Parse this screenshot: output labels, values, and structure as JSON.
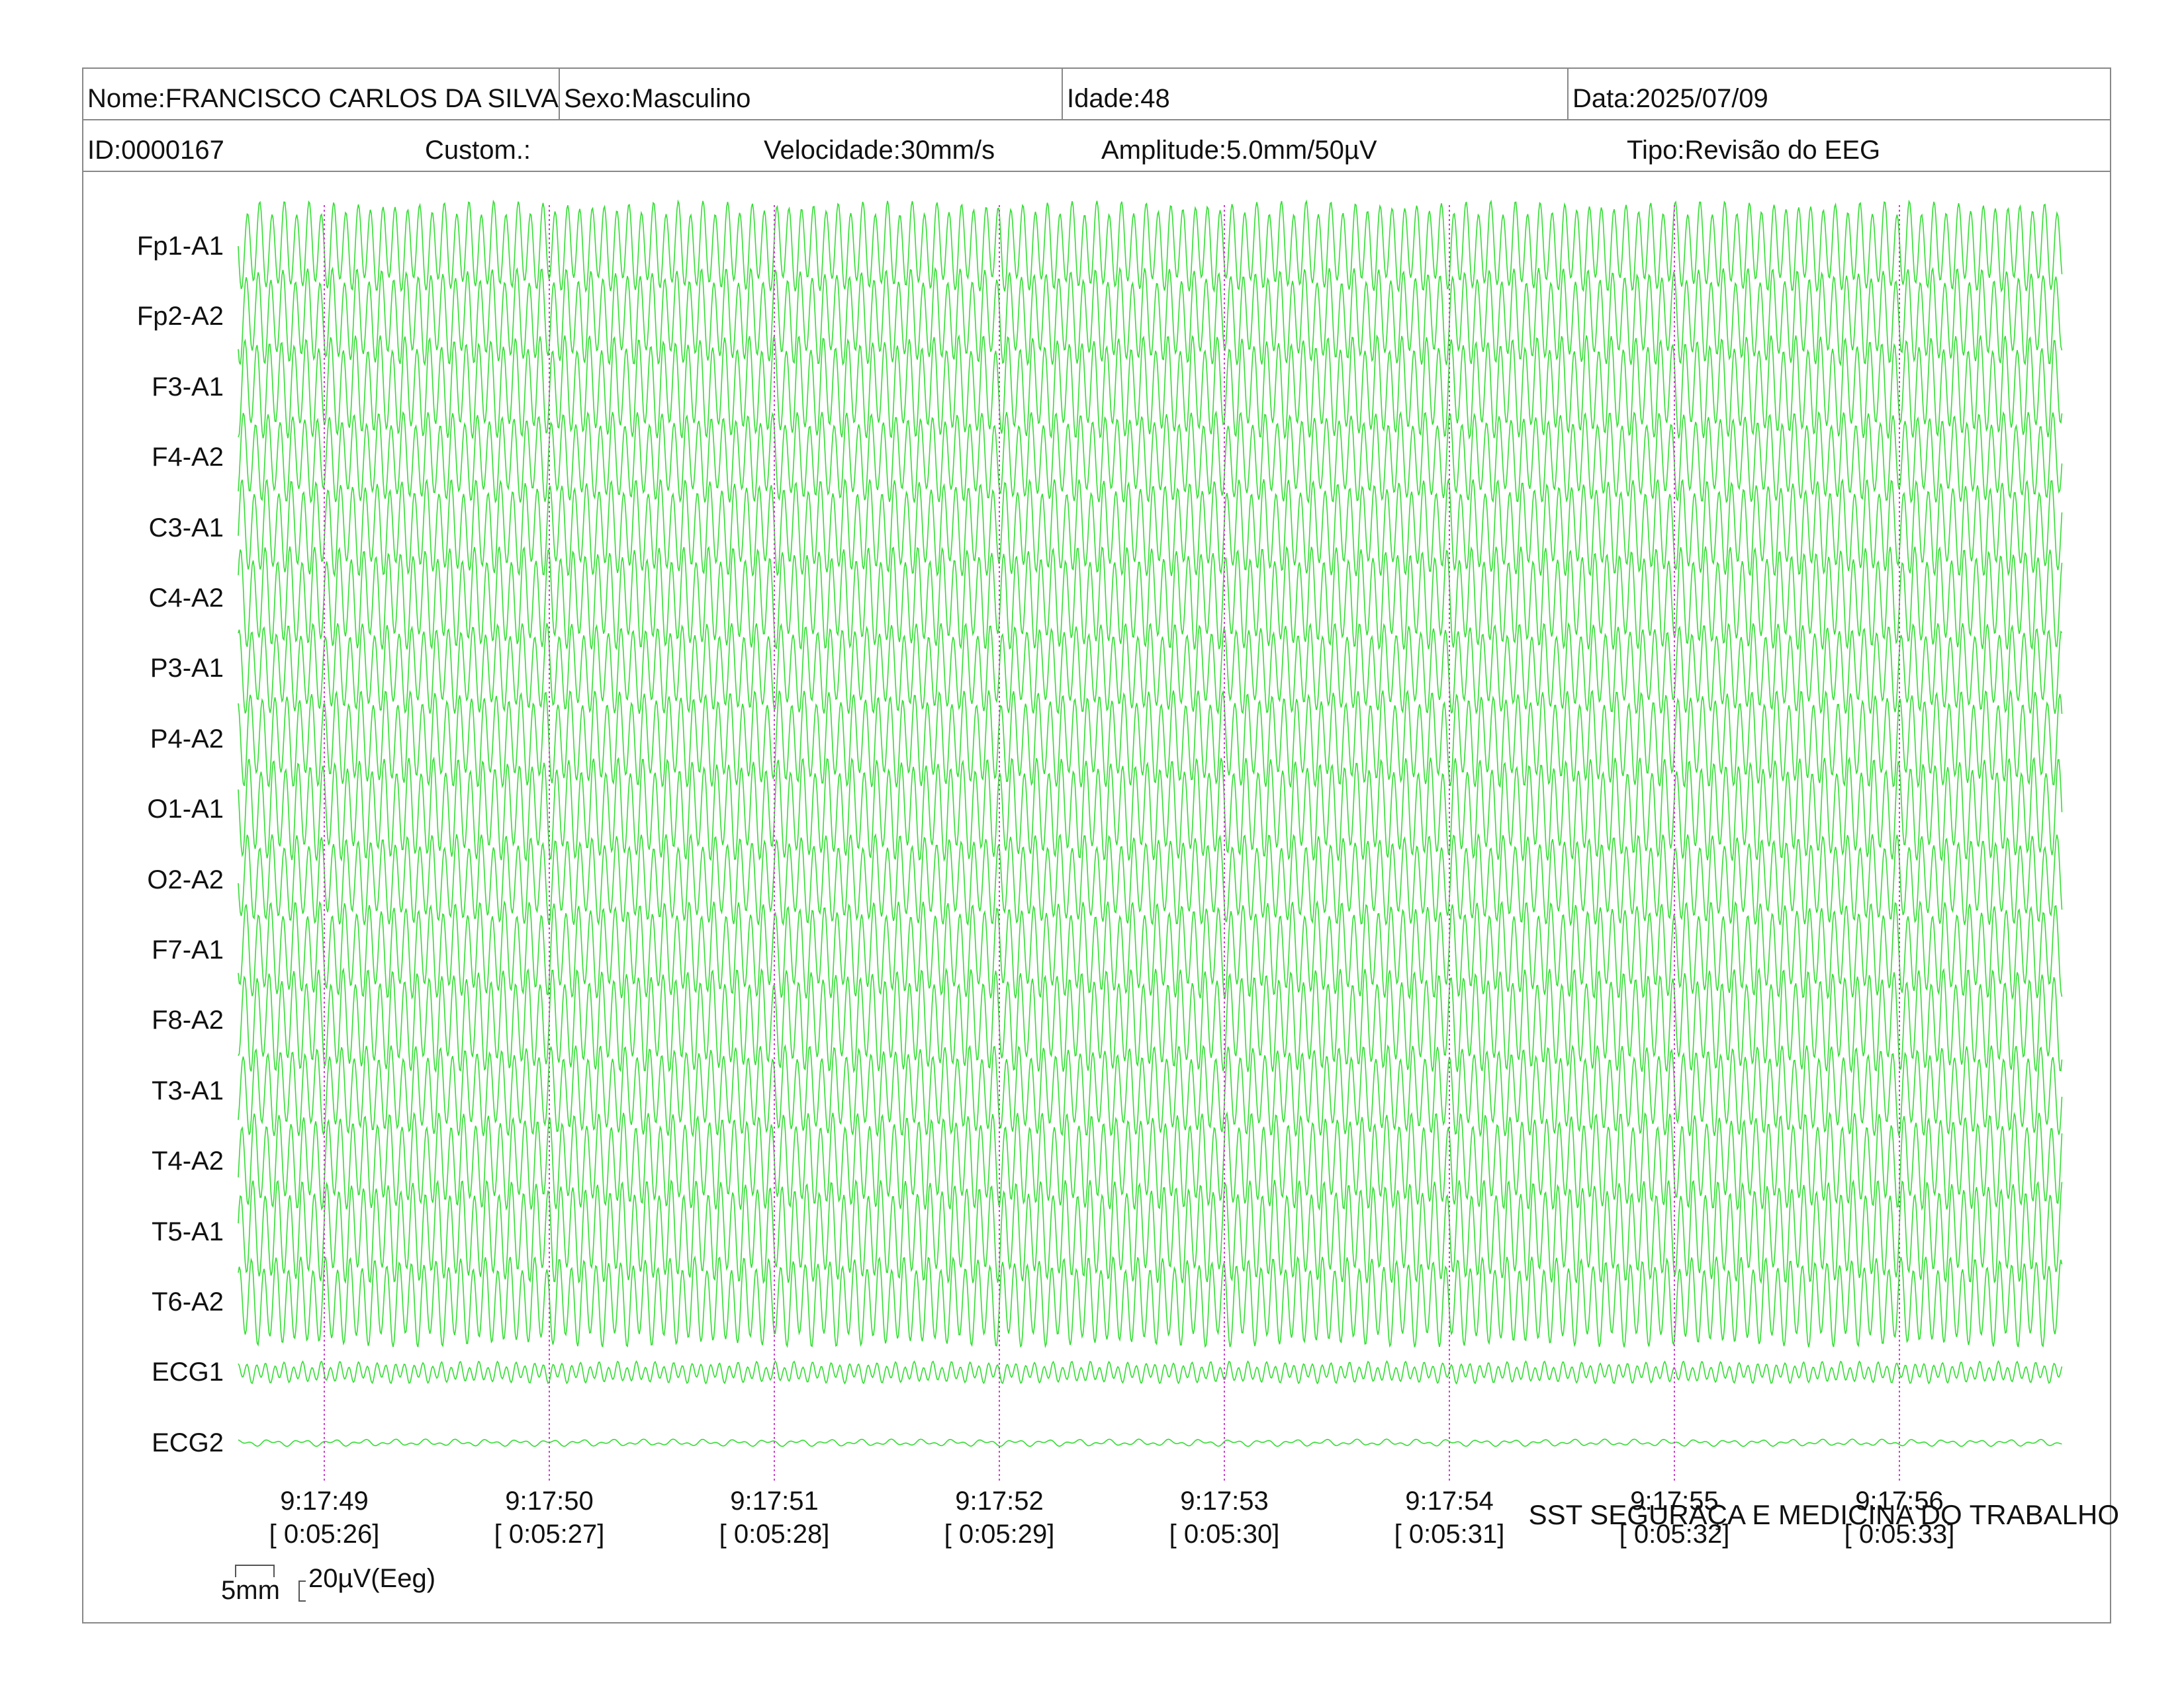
{
  "header": {
    "name": "Nome:FRANCISCO CARLOS DA SILVA",
    "sex": "Sexo:Masculino",
    "age": "Idade:48",
    "date": "Data:2025/07/09",
    "id": "ID:0000167",
    "custom": "Custom.:",
    "speed": "Velocidade:30mm/s",
    "amplitude": "Amplitude:5.0mm/50µV",
    "type": "Tipo:Revisão do EEG"
  },
  "channels": [
    {
      "label": "Fp1-A1",
      "kind": "eeg"
    },
    {
      "label": "Fp2-A2",
      "kind": "eeg"
    },
    {
      "label": "F3-A1",
      "kind": "eeg"
    },
    {
      "label": "F4-A2",
      "kind": "eeg"
    },
    {
      "label": "C3-A1",
      "kind": "eeg"
    },
    {
      "label": "C4-A2",
      "kind": "eeg"
    },
    {
      "label": "P3-A1",
      "kind": "eeg"
    },
    {
      "label": "P4-A2",
      "kind": "eeg"
    },
    {
      "label": "O1-A1",
      "kind": "eeg"
    },
    {
      "label": "O2-A2",
      "kind": "eeg"
    },
    {
      "label": "F7-A1",
      "kind": "eeg"
    },
    {
      "label": "F8-A2",
      "kind": "eeg"
    },
    {
      "label": "T3-A1",
      "kind": "eeg"
    },
    {
      "label": "T4-A2",
      "kind": "eeg"
    },
    {
      "label": "T5-A1",
      "kind": "eeg"
    },
    {
      "label": "T6-A2",
      "kind": "eeg"
    },
    {
      "label": "ECG1",
      "kind": "ecg1"
    },
    {
      "label": "ECG2",
      "kind": "ecg2"
    }
  ],
  "time_markers": [
    {
      "clock": "9:17:49",
      "elapsed": "[ 0:05:26]"
    },
    {
      "clock": "9:17:50",
      "elapsed": "[ 0:05:27]"
    },
    {
      "clock": "9:17:51",
      "elapsed": "[ 0:05:28]"
    },
    {
      "clock": "9:17:52",
      "elapsed": "[ 0:05:29]"
    },
    {
      "clock": "9:17:53",
      "elapsed": "[ 0:05:30]"
    },
    {
      "clock": "9:17:54",
      "elapsed": "[ 0:05:31]"
    },
    {
      "clock": "9:17:55",
      "elapsed": "[ 0:05:32]"
    },
    {
      "clock": "9:17:56",
      "elapsed": "[ 0:05:33]"
    }
  ],
  "scale": {
    "time": "5mm",
    "amplitude": "20µV(Eeg)"
  },
  "footer": "SST SEGURAÇA E MEDICINA DO TRABALHO",
  "colors": {
    "trace": "#33dd33",
    "marker": "#cc44cc",
    "border": "#888888"
  }
}
